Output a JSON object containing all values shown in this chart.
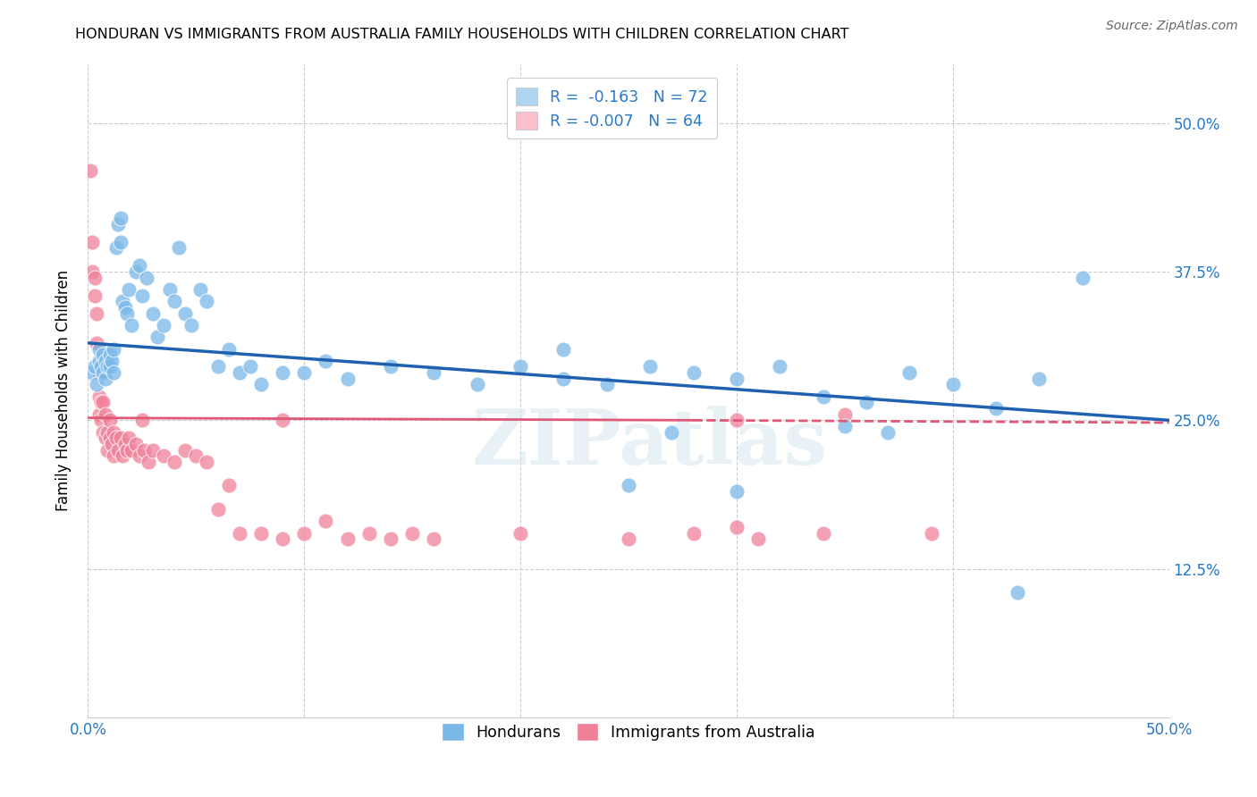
{
  "title": "HONDURAN VS IMMIGRANTS FROM AUSTRALIA FAMILY HOUSEHOLDS WITH CHILDREN CORRELATION CHART",
  "source": "Source: ZipAtlas.com",
  "ylabel": "Family Households with Children",
  "xlim": [
    0.0,
    0.5
  ],
  "ylim": [
    0.0,
    0.55
  ],
  "yticks": [
    0.0,
    0.125,
    0.25,
    0.375,
    0.5
  ],
  "ytick_labels_right": [
    "",
    "12.5%",
    "25.0%",
    "37.5%",
    "50.0%"
  ],
  "xticks": [
    0.0,
    0.1,
    0.2,
    0.3,
    0.4,
    0.5
  ],
  "xtick_labels": [
    "0.0%",
    "",
    "",
    "",
    "",
    "50.0%"
  ],
  "legend_r_label1": "R =  -0.163   N = 72",
  "legend_r_label2": "R = -0.007   N = 64",
  "legend_patch_color1": "#aed4f0",
  "legend_patch_color2": "#f9c0cb",
  "hondurans_color": "#7ab8e8",
  "australia_color": "#f08098",
  "trendline_hon_color": "#2060b0",
  "trendline_aus_color": "#e05878",
  "background_color": "#ffffff",
  "grid_color": "#cccccc",
  "watermark": "ZIPatlas",
  "hon_x": [
    0.002,
    0.003,
    0.004,
    0.005,
    0.005,
    0.006,
    0.007,
    0.007,
    0.008,
    0.008,
    0.009,
    0.01,
    0.01,
    0.011,
    0.012,
    0.012,
    0.013,
    0.014,
    0.015,
    0.015,
    0.016,
    0.017,
    0.018,
    0.019,
    0.02,
    0.022,
    0.024,
    0.025,
    0.027,
    0.03,
    0.032,
    0.035,
    0.038,
    0.04,
    0.042,
    0.045,
    0.048,
    0.052,
    0.055,
    0.06,
    0.065,
    0.07,
    0.075,
    0.08,
    0.09,
    0.1,
    0.11,
    0.12,
    0.14,
    0.16,
    0.18,
    0.2,
    0.22,
    0.24,
    0.26,
    0.28,
    0.3,
    0.32,
    0.34,
    0.36,
    0.38,
    0.4,
    0.42,
    0.44,
    0.46,
    0.22,
    0.25,
    0.27,
    0.3,
    0.35,
    0.37,
    0.43
  ],
  "hon_y": [
    0.29,
    0.295,
    0.28,
    0.3,
    0.31,
    0.295,
    0.29,
    0.305,
    0.285,
    0.3,
    0.295,
    0.305,
    0.295,
    0.3,
    0.29,
    0.31,
    0.395,
    0.415,
    0.42,
    0.4,
    0.35,
    0.345,
    0.34,
    0.36,
    0.33,
    0.375,
    0.38,
    0.355,
    0.37,
    0.34,
    0.32,
    0.33,
    0.36,
    0.35,
    0.395,
    0.34,
    0.33,
    0.36,
    0.35,
    0.295,
    0.31,
    0.29,
    0.295,
    0.28,
    0.29,
    0.29,
    0.3,
    0.285,
    0.295,
    0.29,
    0.28,
    0.295,
    0.285,
    0.28,
    0.295,
    0.29,
    0.285,
    0.295,
    0.27,
    0.265,
    0.29,
    0.28,
    0.26,
    0.285,
    0.37,
    0.31,
    0.195,
    0.24,
    0.19,
    0.245,
    0.24,
    0.105
  ],
  "aus_x": [
    0.001,
    0.002,
    0.002,
    0.003,
    0.003,
    0.004,
    0.004,
    0.005,
    0.005,
    0.005,
    0.006,
    0.006,
    0.007,
    0.007,
    0.008,
    0.008,
    0.009,
    0.009,
    0.01,
    0.01,
    0.011,
    0.012,
    0.012,
    0.013,
    0.014,
    0.015,
    0.016,
    0.017,
    0.018,
    0.019,
    0.02,
    0.022,
    0.024,
    0.026,
    0.028,
    0.03,
    0.035,
    0.04,
    0.045,
    0.05,
    0.055,
    0.06,
    0.065,
    0.07,
    0.08,
    0.09,
    0.1,
    0.11,
    0.12,
    0.13,
    0.14,
    0.15,
    0.16,
    0.2,
    0.25,
    0.28,
    0.31,
    0.34,
    0.3,
    0.35,
    0.39,
    0.3,
    0.09,
    0.025
  ],
  "aus_y": [
    0.46,
    0.4,
    0.375,
    0.37,
    0.355,
    0.34,
    0.315,
    0.29,
    0.27,
    0.255,
    0.265,
    0.25,
    0.265,
    0.24,
    0.255,
    0.235,
    0.24,
    0.225,
    0.235,
    0.25,
    0.23,
    0.24,
    0.22,
    0.235,
    0.225,
    0.235,
    0.22,
    0.23,
    0.225,
    0.235,
    0.225,
    0.23,
    0.22,
    0.225,
    0.215,
    0.225,
    0.22,
    0.215,
    0.225,
    0.22,
    0.215,
    0.175,
    0.195,
    0.155,
    0.155,
    0.15,
    0.155,
    0.165,
    0.15,
    0.155,
    0.15,
    0.155,
    0.15,
    0.155,
    0.15,
    0.155,
    0.15,
    0.155,
    0.25,
    0.255,
    0.155,
    0.16,
    0.25,
    0.25
  ]
}
